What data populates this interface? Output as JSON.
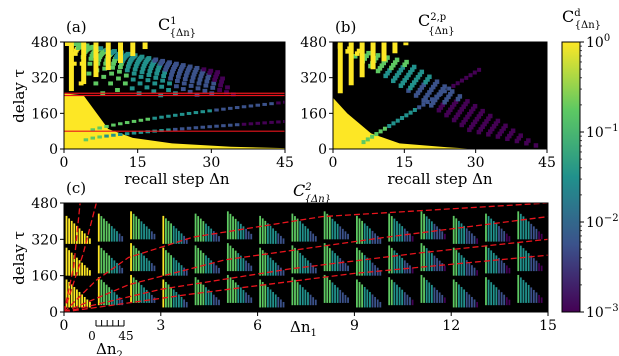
{
  "chart_data": [
    {
      "type": "heatmap",
      "panel_label": "(a)",
      "title": "C",
      "title_sup": "1",
      "title_sub": "{Δn}",
      "xlabel": "recall step Δn",
      "ylabel": "delay τ",
      "xlim": [
        0,
        45
      ],
      "ylim": [
        0,
        480
      ],
      "xticks": [
        "0",
        "15",
        "30",
        "45"
      ],
      "yticks": [
        "0",
        "160",
        "320",
        "480"
      ],
      "hlines": [
        80,
        240,
        250
      ],
      "hline_color": "#e8141c",
      "description_colors": {
        "background": "#000000"
      }
    },
    {
      "type": "heatmap",
      "panel_label": "(b)",
      "title": "C",
      "title_sup": "2,p",
      "title_sub": "{Δn}",
      "xlabel": "recall step Δn",
      "xlim": [
        0,
        45
      ],
      "ylim": [
        0,
        480
      ],
      "xticks": [
        "0",
        "15",
        "30",
        "45"
      ],
      "yticks": [
        "0",
        "160",
        "320",
        "480"
      ]
    },
    {
      "type": "heatmap",
      "panel_label": "(c)",
      "title": "C",
      "title_sup": "2",
      "title_sub": "{Δn}",
      "xlabel": "Δn",
      "xlabel_sub": "1",
      "ylabel": "delay τ",
      "xlim": [
        0,
        15
      ],
      "ylim": [
        0,
        480
      ],
      "xticks": [
        "0",
        "3",
        "6",
        "9",
        "12",
        "15"
      ],
      "yticks": [
        "0",
        "160",
        "320",
        "480"
      ],
      "inset_xlabel": "Δn",
      "inset_xlabel_sub": "2",
      "inset_xticks": [
        "0",
        "45"
      ],
      "curves_color": "#e8141c"
    }
  ],
  "colorbar": {
    "title": "C",
    "title_sup": "d",
    "title_sub": "{Δn}",
    "scale": "log",
    "range": [
      0.001,
      1
    ],
    "tick_bases": [
      "10",
      "10",
      "10",
      "10"
    ],
    "tick_exps": [
      "0",
      "−1",
      "−2",
      "−3"
    ],
    "colormap": [
      "#440154",
      "#3b528b",
      "#21918c",
      "#5ec962",
      "#fde725"
    ]
  }
}
